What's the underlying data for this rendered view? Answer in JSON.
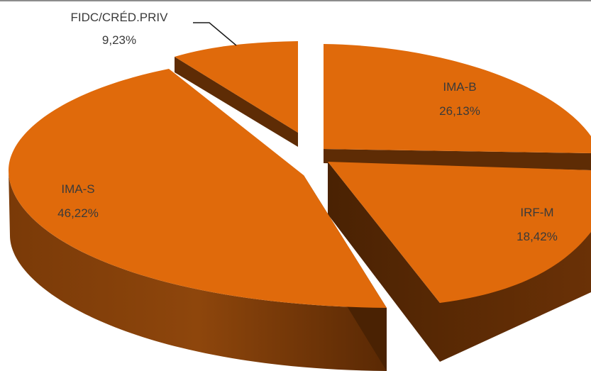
{
  "chart_data": {
    "type": "pie",
    "style": "3d-exploded",
    "slices": [
      {
        "label": "IMA-B",
        "pct": "26,13%",
        "value": 26.13
      },
      {
        "label": "IRF-M",
        "pct": "18,42%",
        "value": 18.42
      },
      {
        "label": "IMA-S",
        "pct": "46,22%",
        "value": 46.22
      },
      {
        "label": "FIDC/CRÉD.PRIV",
        "pct": "9,23%",
        "value": 9.23
      }
    ],
    "colors": {
      "top": "#e06a0b",
      "side": "#5e2c05",
      "side_light": "#8a430c"
    },
    "legend": "none",
    "labels": "on-slice, leader line for small slice"
  }
}
